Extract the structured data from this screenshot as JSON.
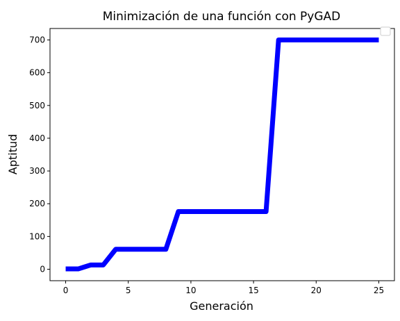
{
  "chart_data": {
    "type": "line",
    "title": "Minimización de una función con PyGAD",
    "xlabel": "Generación",
    "ylabel": "Aptitud",
    "xlim": [
      -1.25,
      26.25
    ],
    "ylim": [
      -35,
      735
    ],
    "x_ticks": [
      0,
      5,
      10,
      15,
      20,
      25
    ],
    "y_ticks": [
      0,
      100,
      200,
      300,
      400,
      500,
      600,
      700
    ],
    "grid": false,
    "legend": "top-right",
    "series": [
      {
        "color": "#0000ff",
        "x": [
          0,
          1,
          2,
          3,
          4,
          5,
          6,
          7,
          8,
          9,
          10,
          11,
          12,
          13,
          14,
          15,
          16,
          17,
          18,
          19,
          20,
          21,
          22,
          23,
          24,
          25
        ],
        "y": [
          1,
          1,
          13,
          13,
          61,
          61,
          61,
          61,
          61,
          176,
          176,
          176,
          176,
          176,
          176,
          176,
          176,
          700,
          700,
          700,
          700,
          700,
          700,
          700,
          700,
          700
        ]
      }
    ]
  }
}
